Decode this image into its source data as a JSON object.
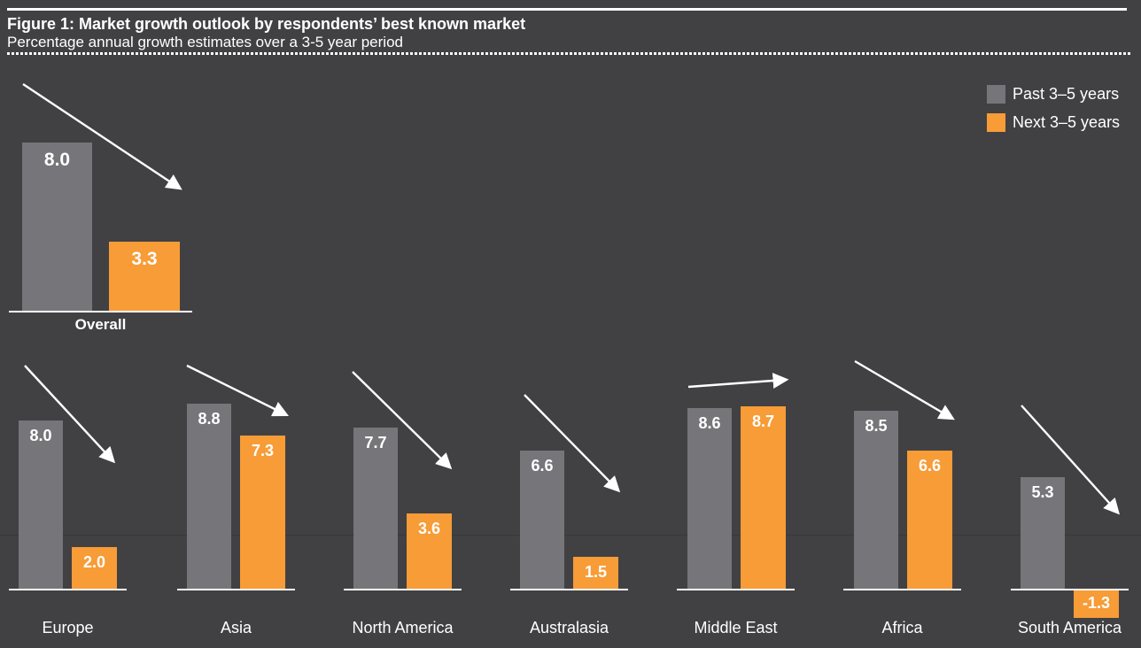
{
  "header": {
    "title": "Figure 1: Market growth outlook by respondents’ best known market",
    "subtitle": "Percentage annual growth estimates over a 3-5 year period"
  },
  "legend": [
    {
      "label": "Past 3–5 years",
      "series": "past",
      "color": "#76767A"
    },
    {
      "label": "Next 3–5 years",
      "series": "next",
      "color": "#F79C36"
    }
  ],
  "colors": {
    "background": "#414144",
    "past_bar": "#76767A",
    "next_bar": "#F79C36",
    "text": "#FFFFFF"
  },
  "chart_data": {
    "type": "bar",
    "title": "Figure 1: Market growth outlook by respondents’ best known market",
    "subtitle": "Percentage annual growth estimates over a 3-5 year period",
    "unit": "percentage annual growth",
    "series_names": [
      "Past 3–5 years",
      "Next 3–5 years"
    ],
    "value_format": "one_decimal",
    "grid": false,
    "legend_position": "top-right",
    "groups": [
      {
        "label": "Overall",
        "past": 8.0,
        "next": 3.3,
        "trend": "down",
        "size": "large"
      },
      {
        "label": "Europe",
        "past": 8.0,
        "next": 2.0,
        "trend": "down"
      },
      {
        "label": "Asia",
        "past": 8.8,
        "next": 7.3,
        "trend": "down"
      },
      {
        "label": "North America",
        "past": 7.7,
        "next": 3.6,
        "trend": "down"
      },
      {
        "label": "Australasia",
        "past": 6.6,
        "next": 1.5,
        "trend": "down"
      },
      {
        "label": "Middle East",
        "past": 8.6,
        "next": 8.7,
        "trend": "flat"
      },
      {
        "label": "Africa",
        "past": 8.5,
        "next": 6.6,
        "trend": "down"
      },
      {
        "label": "South America",
        "past": 5.3,
        "next": -1.3,
        "trend": "down"
      }
    ]
  }
}
